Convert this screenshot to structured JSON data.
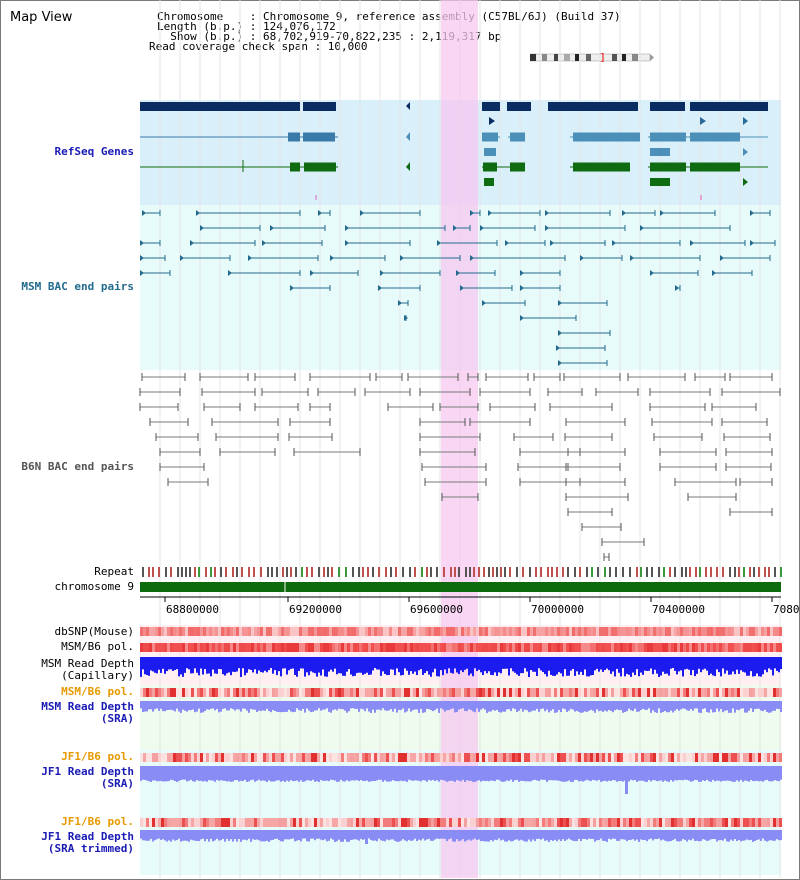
{
  "title": "Map View",
  "info": {
    "chromosome": "Chromosome    : Chromosome 9, reference assembly (C57BL/6J) (Build 37)",
    "length": "Length (b.p.) : 124,076,172",
    "show": "  Show (b.p.) : 68,702,919-70,822,235 : 2,119,317 bp",
    "span": "Read coverage check span : 10,000"
  },
  "tracks": {
    "refseq": "RefSeq Genes",
    "msm_bac": "MSM BAC end pairs",
    "b6n_bac": "B6N BAC end pairs",
    "repeat": "Repeat",
    "chromosome": "chromosome 9",
    "dbsnp": "dbSNP(Mouse)",
    "msm_b6_pol": "MSM/B6 pol.",
    "msm_read_depth_cap": "MSM Read Depth\n(Capillary)",
    "msm_b6_pol2": "MSM/B6 pol.",
    "msm_read_depth_sra": "MSM Read Depth\n(SRA)",
    "jf1_b6_pol": "JF1/B6 pol.",
    "jf1_read_depth_sra": "JF1 Read Depth\n(SRA)",
    "jf1_b6_pol2": "JF1/B6 pol.",
    "jf1_read_depth_trim": "JF1 Read Depth\n(SRA trimmed)"
  },
  "scale": {
    "ticks": [
      "68800000",
      "69200000",
      "69600000",
      "70000000",
      "70400000",
      "7080"
    ]
  },
  "colors": {
    "gene_dark": "#0b2c63",
    "gene_light": "#4a90b8",
    "gene_green": "#0f6b0f",
    "bac_msm": "#236b8e",
    "bac_b6n": "#7a7a7a",
    "highlight": "#f6c8f0",
    "depth_blue": "#1b1bf0",
    "depth_light": "#8a8cf5"
  }
}
